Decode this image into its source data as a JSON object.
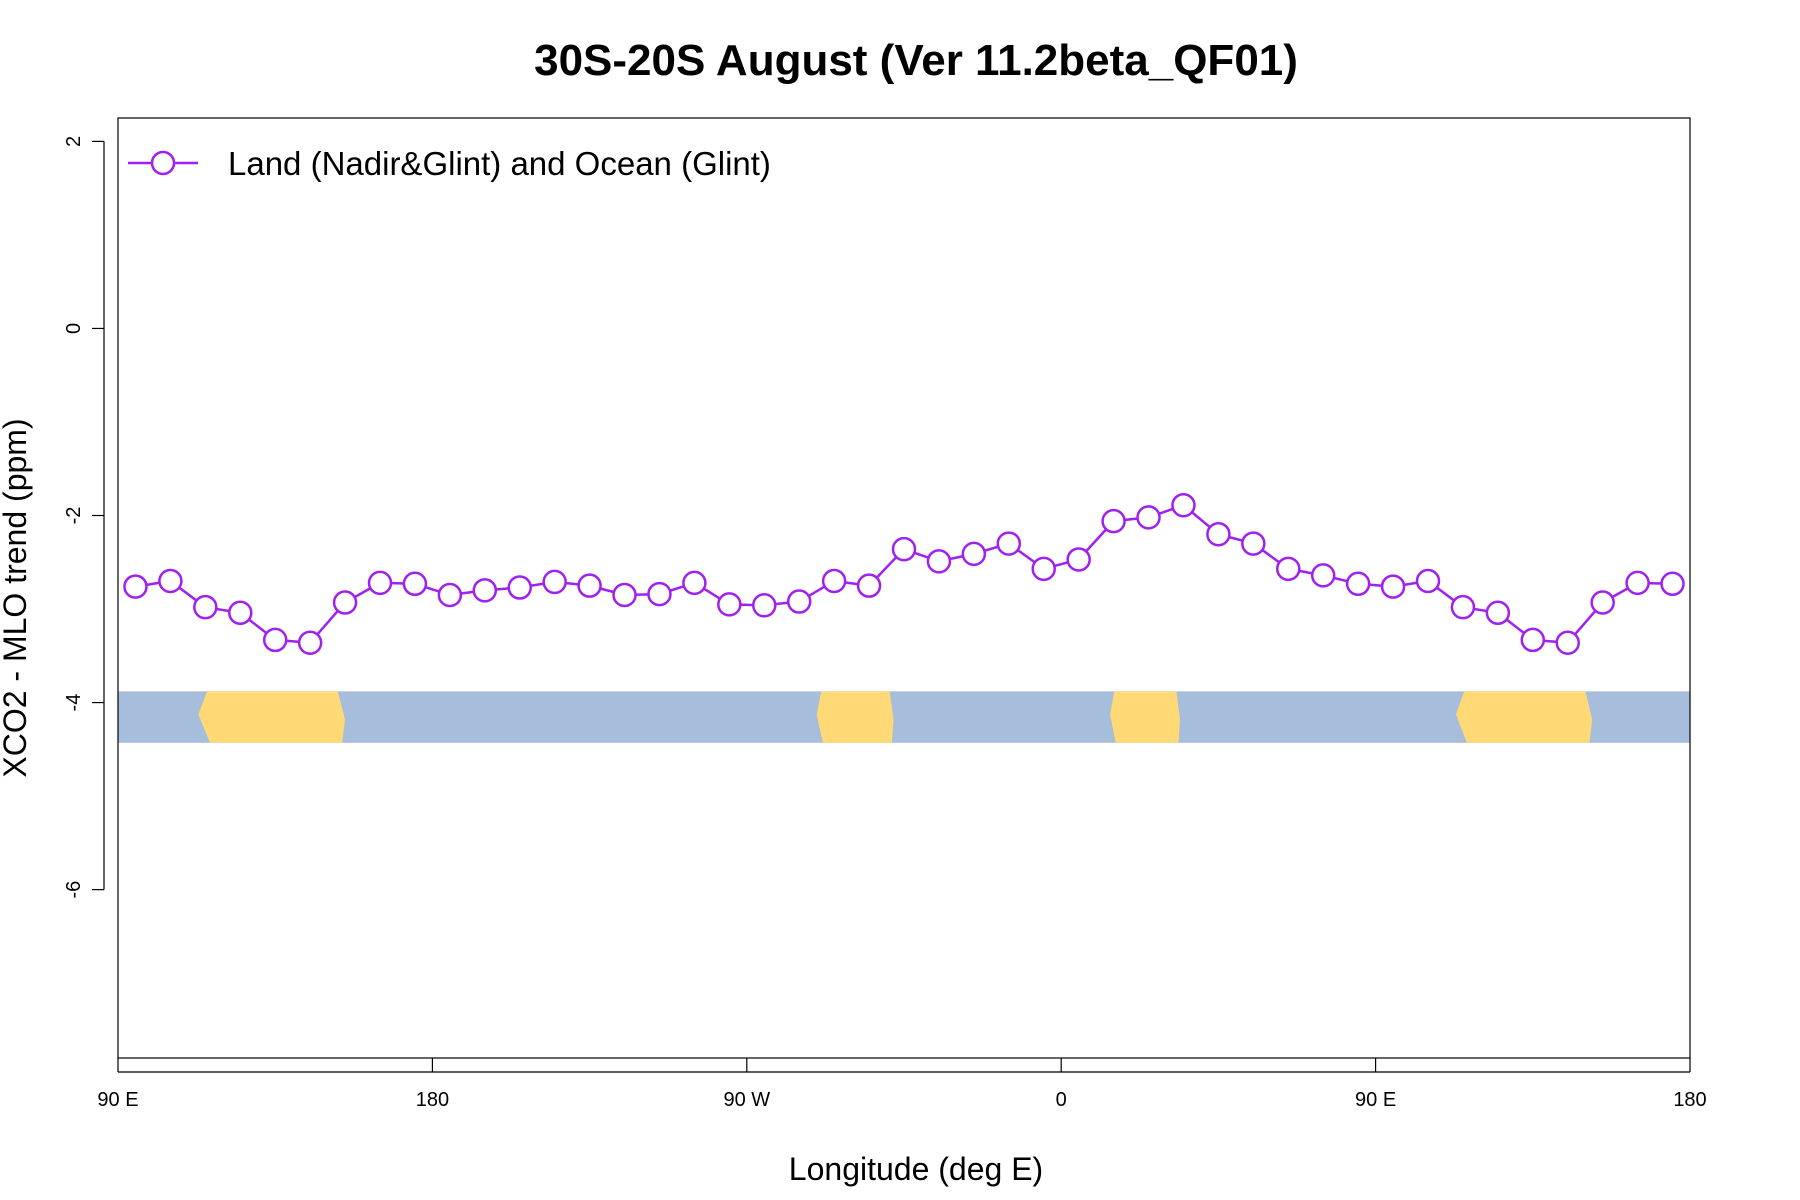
{
  "chart_data": {
    "type": "line",
    "title": "30S-20S August (Ver 11.2beta_QF01)",
    "xlabel": "Longitude (deg E)",
    "ylabel": "XCO2 - MLO trend (ppm)",
    "xlim": [
      90,
      540
    ],
    "ylim": [
      -7.8,
      2.25
    ],
    "x_ticks": [
      {
        "value": 90,
        "label": "90 E"
      },
      {
        "value": 180,
        "label": "180"
      },
      {
        "value": 270,
        "label": "90 W"
      },
      {
        "value": 360,
        "label": "0"
      },
      {
        "value": 450,
        "label": "90 E"
      },
      {
        "value": 540,
        "label": "180"
      }
    ],
    "y_ticks": [
      {
        "value": 2,
        "label": "2"
      },
      {
        "value": 0,
        "label": "0"
      },
      {
        "value": -2,
        "label": "-2"
      },
      {
        "value": -4,
        "label": "-4"
      },
      {
        "value": -6,
        "label": "-6"
      }
    ],
    "legend": {
      "position": "top-left"
    },
    "series": [
      {
        "name": "Land (Nadir&Glint) and Ocean (Glint)",
        "color": "#a020f0",
        "marker": "open-circle",
        "x": [
          95,
          105,
          115,
          125,
          135,
          145,
          155,
          165,
          175,
          185,
          195,
          205,
          215,
          225,
          235,
          245,
          255,
          265,
          275,
          285,
          295,
          305,
          315,
          325,
          335,
          345,
          355,
          365,
          375,
          385,
          395,
          405,
          415,
          425,
          435,
          445,
          455,
          465,
          475,
          485,
          495,
          505,
          515,
          525,
          535
        ],
        "values": [
          -2.76,
          -2.7,
          -2.98,
          -3.04,
          -3.33,
          -3.36,
          -2.93,
          -2.72,
          -2.73,
          -2.85,
          -2.8,
          -2.77,
          -2.71,
          -2.75,
          -2.85,
          -2.84,
          -2.72,
          -2.95,
          -2.96,
          -2.92,
          -2.7,
          -2.75,
          -2.36,
          -2.49,
          -2.41,
          -2.3,
          -2.57,
          -2.47,
          -2.06,
          -2.02,
          -1.89,
          -2.2,
          -2.3,
          -2.57,
          -2.64,
          -2.73,
          -2.76,
          -2.7,
          -2.98,
          -3.04,
          -3.33,
          -3.36,
          -2.93,
          -2.72,
          -2.73
        ]
      }
    ],
    "map_strip": {
      "y_range": [
        -4.43,
        -3.88
      ],
      "ocean_color": "#a6bddb",
      "land_color": "#fed976",
      "land_lon_ranges": [
        [
          113,
          155
        ],
        [
          290,
          312
        ],
        [
          374,
          394
        ],
        [
          473,
          512
        ]
      ]
    }
  }
}
